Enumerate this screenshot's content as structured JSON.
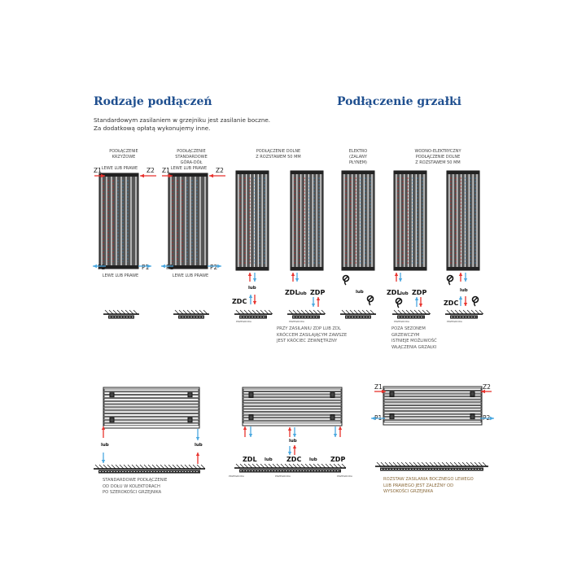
{
  "headings": {
    "left": "Rodzaje podłączeń",
    "right": "Podłączenie grzałki"
  },
  "intro": [
    "Standardowym zasilaniem w grzejniku jest zasilanie boczne.",
    "Za dodatkową opłatą wykonujemy inne."
  ],
  "column_labels": [
    [
      "PODŁĄCZENIE",
      "KRZYŻOWE"
    ],
    [
      "PODŁĄCZENIE",
      "STANDARDOWE",
      "GÓRA-DÓŁ"
    ],
    [
      "PODŁĄCZENIE DOLNE",
      "Z ROZSTAWEM 50 MM"
    ],
    [
      "ELEKTRO",
      "(ZALANY",
      "PŁYNEM)"
    ],
    [
      "WODNO-ELEKTRYCZNY",
      "PODŁĄCZENIE DOLNE",
      "Z ROZSTAWEM 50 MM"
    ]
  ],
  "side_label": "LEWE LUB PRAWE",
  "ports": {
    "z1": "Z1",
    "z2": "Z2",
    "p1": "P1",
    "p2": "P2"
  },
  "connections": {
    "zdc": "ZDC",
    "zdl": "ZDL",
    "zdp": "ZDP",
    "or": "lub"
  },
  "wall_label": "PRZEGRODA",
  "notes": {
    "bottom_feed": [
      "PRZY ZASILANIU ZDP LUB ZDL",
      "KRÓCCEM ZASILAJĄCYM ZAWSZE",
      "JEST KRÓCIEC ZEWNĘTRZNY"
    ],
    "heater": [
      "POZA SEZONEM",
      "GRZEWCZYM",
      "ISTNIEJE MOŻLIWOŚĆ",
      "WŁĄCZENIA GRZAŁKI"
    ],
    "collectors": [
      "STANDARDOWE PODŁĄCZENIE",
      "OD DOŁU W KOLEKTORACH",
      "PO SZEROKOŚCI GRZEJNIKA"
    ],
    "side_spacing": [
      "ROZSTAW ZASILANIA BOCZNEGO LEWEGO",
      "LUB PRAWEGO JEST ZALEŻNY OD",
      "WYSOKOŚCI GRZEJNIKA"
    ]
  },
  "colors": {
    "heading": "#1f4f8f",
    "supply": "#e8322d",
    "return": "#4aa8e0",
    "radiator": "#2a2a2a",
    "note_accent": "#8a6a3a"
  },
  "icons": [
    "arrow-supply-icon",
    "arrow-return-icon",
    "heater-plug-icon",
    "wall-hatch-icon"
  ]
}
